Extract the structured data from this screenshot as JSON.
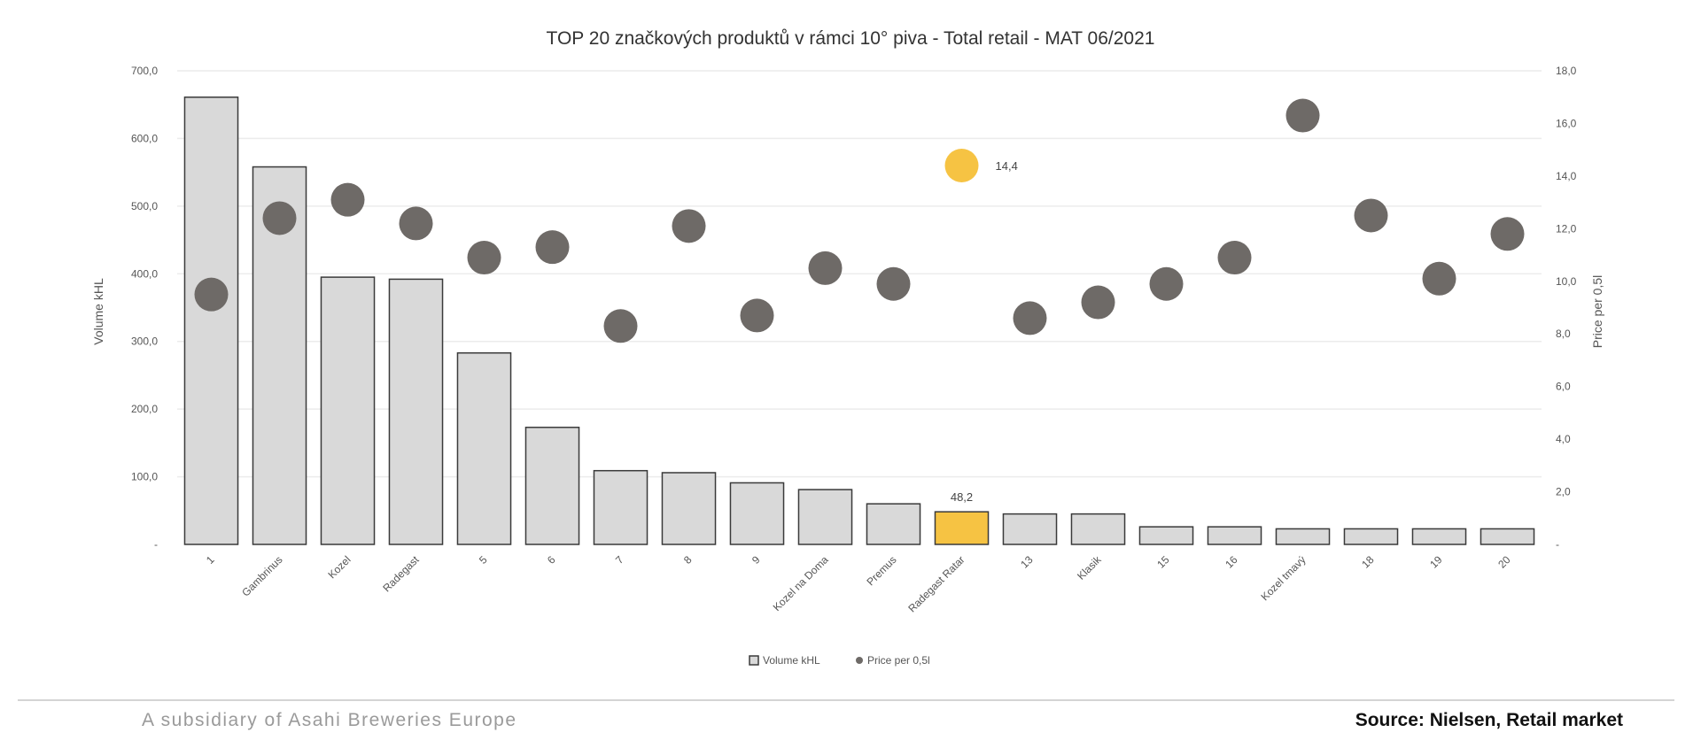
{
  "chart_data": {
    "type": "bar",
    "title": "TOP 20 značkových produktů v rámci 10° piva - Total retail - MAT 06/2021",
    "categories": [
      "1",
      "Gambrinus",
      "Kozel",
      "Radegast",
      "5",
      "6",
      "7",
      "8",
      "9",
      "Kozel na Doma",
      "Premus",
      "Radegast Ratar",
      "13",
      "Klasik",
      "15",
      "16",
      "Kozel tmavý",
      "18",
      "19",
      "20"
    ],
    "ylabel": "Volume kHL",
    "y2label": "Price per 0,5l",
    "ylim": [
      0,
      700
    ],
    "y2lim": [
      0,
      18
    ],
    "yticks": [
      "-",
      "100,0",
      "200,0",
      "300,0",
      "400,0",
      "500,0",
      "600,0",
      "700,0"
    ],
    "y2ticks": [
      "-",
      "2,0",
      "4,0",
      "6,0",
      "8,0",
      "10,0",
      "12,0",
      "14,0",
      "16,0",
      "18,0"
    ],
    "grid": true,
    "legend_position": "bottom",
    "series": [
      {
        "name": "Volume kHL",
        "kind": "bar",
        "axis": "left",
        "values": [
          661,
          558,
          395,
          392,
          283,
          173,
          109,
          106,
          91,
          81,
          60,
          48.2,
          45,
          45,
          26,
          26,
          23,
          23,
          23,
          23
        ]
      },
      {
        "name": "Price per 0,5l",
        "kind": "scatter",
        "axis": "right",
        "values": [
          9.5,
          12.4,
          13.1,
          12.2,
          10.9,
          11.3,
          8.3,
          12.1,
          8.7,
          10.5,
          9.9,
          14.4,
          8.6,
          9.2,
          9.9,
          10.9,
          16.3,
          12.5,
          10.1,
          11.8
        ]
      }
    ],
    "highlight_index": 11,
    "data_labels": {
      "bar": "48,2",
      "point": "14,4"
    },
    "colors": {
      "bar": "#d9d9d9",
      "bar_stroke": "#3a3a3a",
      "point": "#6e6a67",
      "highlight": "#f6c343",
      "grid": "#ececec",
      "axis_text": "#555555"
    }
  },
  "footer": {
    "subsidiary": "A subsidiary of Asahi Breweries Europe",
    "source": "Source: Nielsen, Retail market"
  }
}
